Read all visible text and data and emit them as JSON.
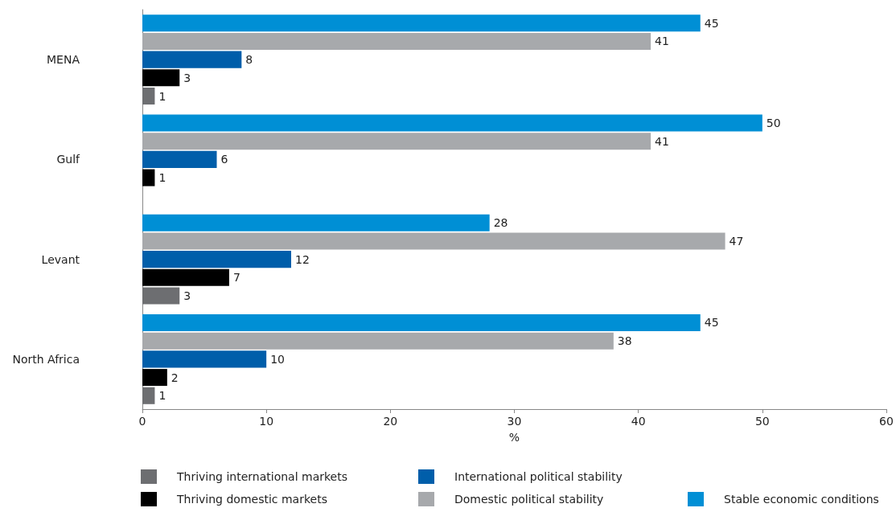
{
  "chart_data": {
    "type": "bar",
    "orientation": "horizontal",
    "xlabel": "%",
    "categories": [
      "MENA",
      "Gulf",
      "Levant",
      "North Africa"
    ],
    "series": [
      {
        "name": "Thriving international markets",
        "color": "#6d6e71",
        "values": [
          1,
          null,
          3,
          1
        ]
      },
      {
        "name": "Thriving domestic markets",
        "color": "#000000",
        "values": [
          3,
          1,
          7,
          2
        ]
      },
      {
        "name": "International political stability",
        "color": "#005eaa",
        "values": [
          8,
          6,
          12,
          10
        ]
      },
      {
        "name": "Domestic political stability",
        "color": "#a7a9ac",
        "values": [
          41,
          41,
          47,
          38
        ]
      },
      {
        "name": "Stable economic conditions",
        "color": "#008fd5",
        "values": [
          45,
          50,
          28,
          45
        ]
      }
    ],
    "xlim": [
      0,
      60
    ],
    "xticks": [
      0,
      10,
      20,
      30,
      40,
      50,
      60
    ],
    "data_labels": true,
    "grid": false,
    "legend": "bottom"
  }
}
